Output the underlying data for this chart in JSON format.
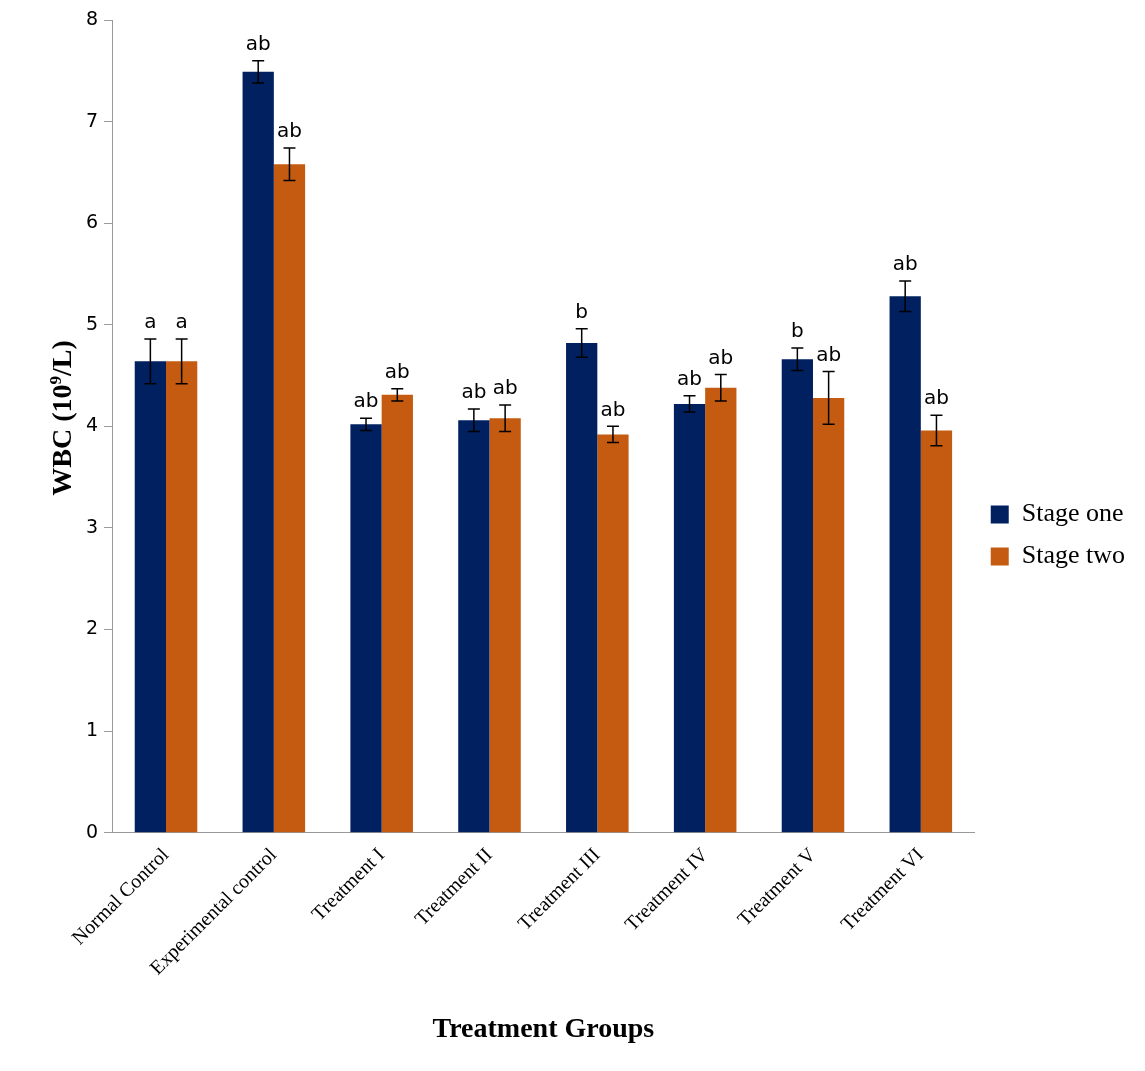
{
  "chart_data": {
    "type": "bar",
    "xlabel": "Treatment Groups",
    "ylabel": "WBC (10$^{9}$/L)",
    "categories": [
      "Normal Control",
      "Experimental control",
      "Treatment I",
      "Treatment II",
      "Treatment III",
      "Treatment IV",
      "Treatment V",
      "Treatment VI"
    ],
    "series": [
      {
        "name": "Stage one",
        "color": "#002060",
        "values": [
          4.64,
          7.49,
          4.02,
          4.06,
          4.82,
          4.22,
          4.66,
          5.28
        ],
        "errors": [
          0.22,
          0.11,
          0.06,
          0.11,
          0.14,
          0.08,
          0.11,
          0.15
        ]
      },
      {
        "name": "Stage two",
        "color": "#c55a11",
        "values": [
          4.64,
          6.58,
          4.31,
          4.08,
          3.92,
          4.38,
          4.28,
          3.96
        ],
        "errors": [
          0.22,
          0.16,
          0.06,
          0.13,
          0.08,
          0.13,
          0.26,
          0.15
        ]
      }
    ],
    "ylim": [
      0,
      8
    ],
    "yticks": [
      0,
      1,
      2,
      3,
      4,
      5,
      6,
      7,
      8
    ],
    "grid": false,
    "legend": "right",
    "annotations": [
      {
        "text": "a",
        "x": "Normal Control",
        "y": 4.64
      },
      {
        "text": "a",
        "x": "Normal Control",
        "y": 4.64
      },
      {
        "text": "ab",
        "x": "Experimental control",
        "y": 7.49
      },
      {
        "text": "ab",
        "x": "Experimental control",
        "y": 6.58
      },
      {
        "text": "ab",
        "x": "Treatment I",
        "y": 4.02
      },
      {
        "text": "ab",
        "x": "Treatment I",
        "y": 4.31
      },
      {
        "text": "ab",
        "x": "Treatment II",
        "y": 4.06
      },
      {
        "text": "ab",
        "x": "Treatment II",
        "y": 4.08
      },
      {
        "text": "b",
        "x": "Treatment III",
        "y": 4.82
      },
      {
        "text": "ab",
        "x": "Treatment III",
        "y": 3.92
      },
      {
        "text": "ab",
        "x": "Treatment IV",
        "y": 4.22
      },
      {
        "text": "ab",
        "x": "Treatment IV",
        "y": 4.38
      },
      {
        "text": "b",
        "x": "Treatment V",
        "y": 4.66
      },
      {
        "text": "ab",
        "x": "Treatment V",
        "y": 4.28
      },
      {
        "text": "ab",
        "x": "Treatment VI",
        "y": 5.28
      },
      {
        "text": "ab",
        "x": "Treatment VI",
        "y": 3.96
      }
    ]
  }
}
